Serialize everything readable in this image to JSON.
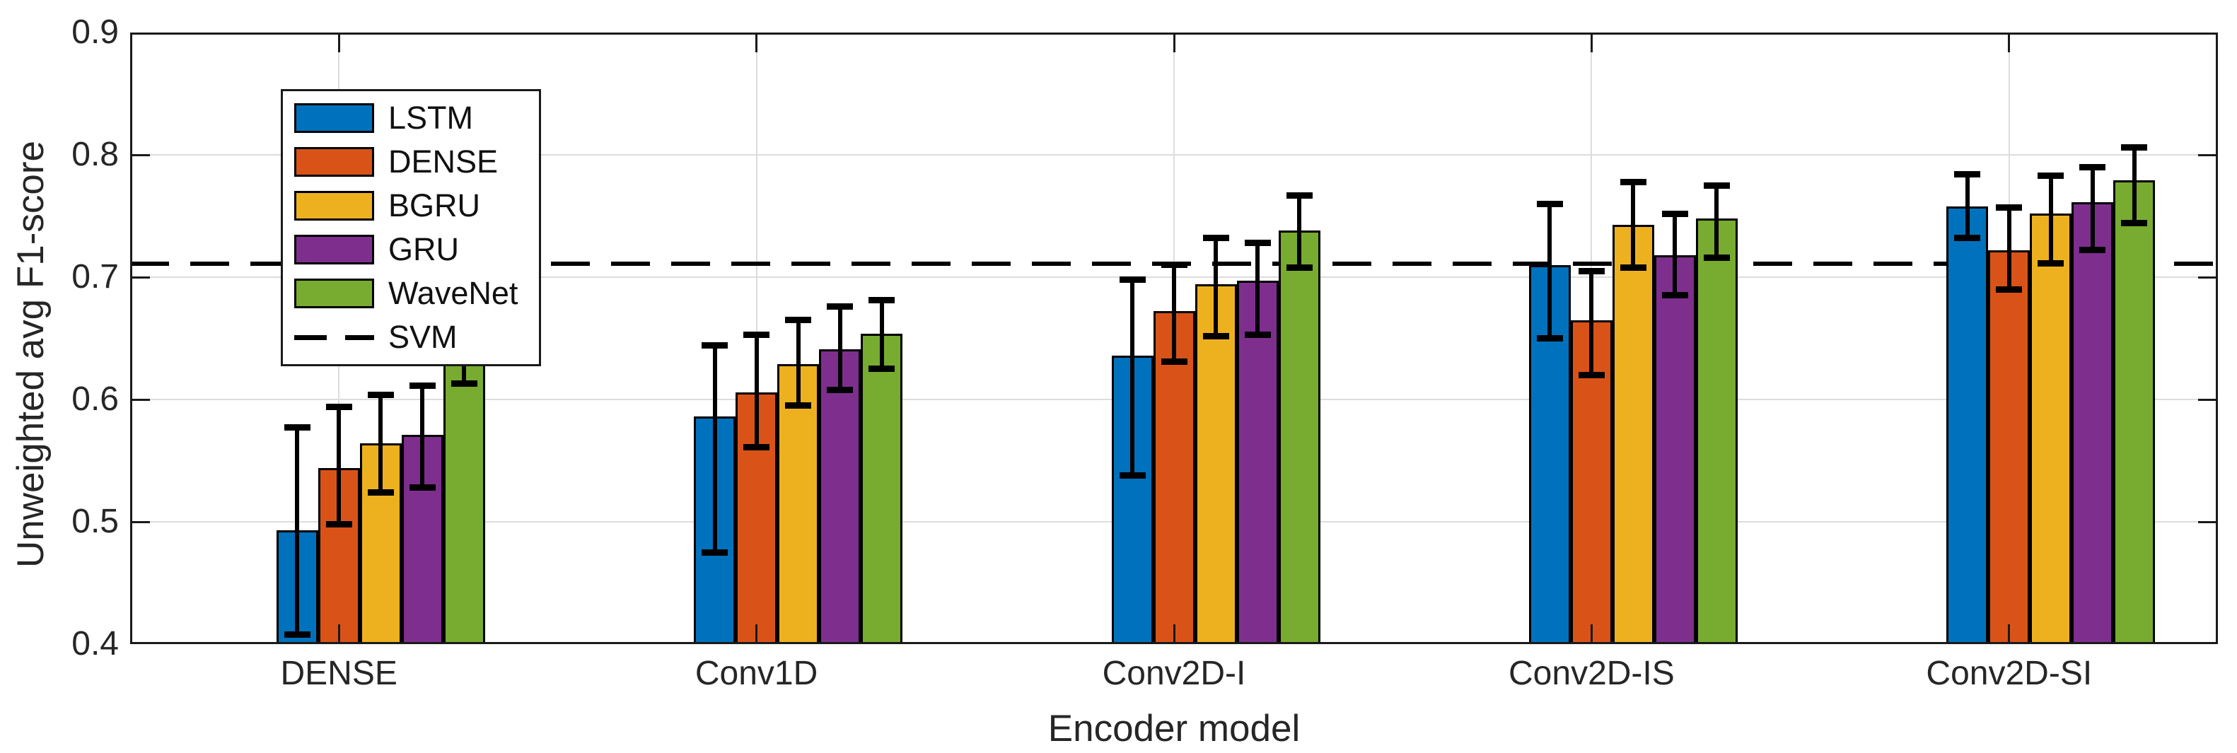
{
  "figure": {
    "background": "#ffffff",
    "text_color": "#262626",
    "axis_color": "#1a1a1a",
    "grid_color": "#dcdcdc"
  },
  "chart_data": {
    "type": "bar",
    "title": "",
    "xlabel": "Encoder model",
    "ylabel": "Unweighted avg F1-score",
    "ylim": [
      0.4,
      0.9
    ],
    "yticks": [
      0.4,
      0.5,
      0.6,
      0.7,
      0.8,
      0.9
    ],
    "grid": true,
    "legend_position": "top-left",
    "categories": [
      "DENSE",
      "Conv1D",
      "Conv2D-I",
      "Conv2D-IS",
      "Conv2D-SI"
    ],
    "series": [
      {
        "name": "LSTM",
        "color": "#0072BD",
        "values": [
          0.493,
          0.586,
          0.636,
          0.71,
          0.758
        ],
        "err_lo": [
          0.408,
          0.475,
          0.538,
          0.65,
          0.732
        ],
        "err_hi": [
          0.577,
          0.644,
          0.698,
          0.76,
          0.784
        ]
      },
      {
        "name": "DENSE",
        "color": "#D95319",
        "values": [
          0.544,
          0.606,
          0.672,
          0.665,
          0.722
        ],
        "err_lo": [
          0.498,
          0.561,
          0.631,
          0.62,
          0.69
        ],
        "err_hi": [
          0.594,
          0.653,
          0.71,
          0.705,
          0.757
        ]
      },
      {
        "name": "BGRU",
        "color": "#EDB120",
        "values": [
          0.564,
          0.629,
          0.694,
          0.743,
          0.752
        ],
        "err_lo": [
          0.524,
          0.595,
          0.652,
          0.708,
          0.711
        ],
        "err_hi": [
          0.604,
          0.665,
          0.732,
          0.778,
          0.783
        ]
      },
      {
        "name": "GRU",
        "color": "#7E2F8E",
        "values": [
          0.571,
          0.641,
          0.697,
          0.718,
          0.761
        ],
        "err_lo": [
          0.528,
          0.608,
          0.653,
          0.685,
          0.722
        ],
        "err_hi": [
          0.611,
          0.676,
          0.728,
          0.752,
          0.79
        ]
      },
      {
        "name": "WaveNet",
        "color": "#77AC30",
        "values": [
          0.647,
          0.654,
          0.738,
          0.748,
          0.779
        ],
        "err_lo": [
          0.613,
          0.625,
          0.708,
          0.716,
          0.744
        ],
        "err_hi": [
          0.679,
          0.681,
          0.767,
          0.775,
          0.806
        ]
      }
    ],
    "baseline": {
      "label": "SVM",
      "value": 0.711,
      "style": "dashed",
      "color": "#000000"
    }
  }
}
